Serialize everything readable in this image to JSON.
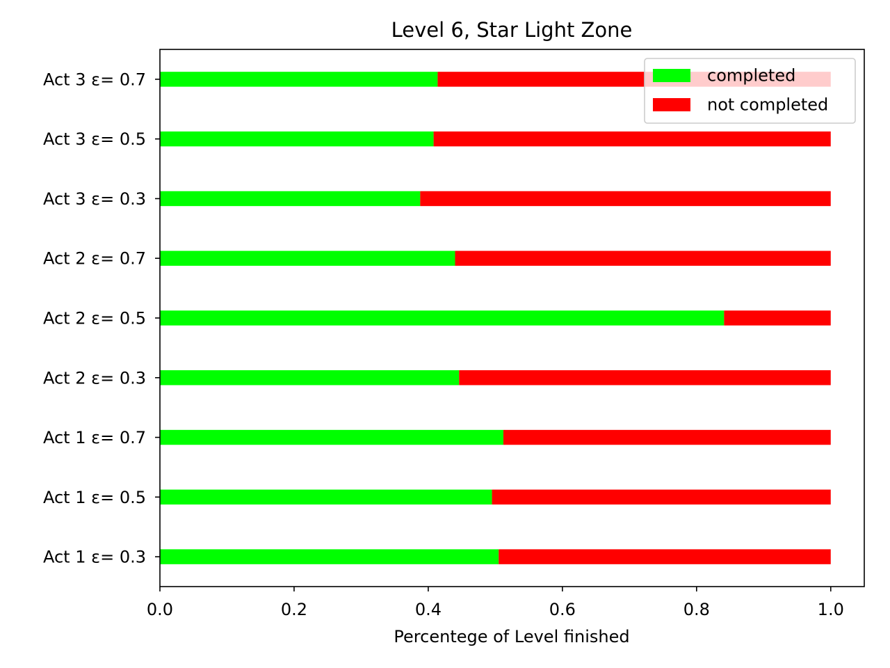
{
  "chart_data": {
    "type": "bar",
    "orientation": "horizontal",
    "stacked": true,
    "title": "Level 6, Star Light Zone",
    "xlabel": "Percentege of Level finished",
    "ylabel": "",
    "xlim": [
      0.0,
      1.05
    ],
    "xticks": [
      0.0,
      0.2,
      0.4,
      0.6,
      0.8,
      1.0
    ],
    "xtick_labels": [
      "0.0",
      "0.2",
      "0.4",
      "0.6",
      "0.8",
      "1.0"
    ],
    "grid": false,
    "legend_position": "top-right",
    "categories": [
      "Act 1 ε= 0.3",
      "Act 1 ε= 0.5",
      "Act 1 ε= 0.7",
      "Act 2 ε= 0.3",
      "Act 2 ε= 0.5",
      "Act 2 ε= 0.7",
      "Act 3 ε= 0.3",
      "Act 3 ε= 0.5",
      "Act 3 ε= 0.7"
    ],
    "series": [
      {
        "name": "completed",
        "color": "#00ff00",
        "values": [
          0.505,
          0.495,
          0.512,
          0.446,
          0.841,
          0.44,
          0.388,
          0.408,
          0.414
        ]
      },
      {
        "name": "not completed",
        "color": "#ff0000",
        "values": [
          0.495,
          0.505,
          0.488,
          0.554,
          0.159,
          0.56,
          0.612,
          0.592,
          0.586
        ]
      }
    ]
  }
}
